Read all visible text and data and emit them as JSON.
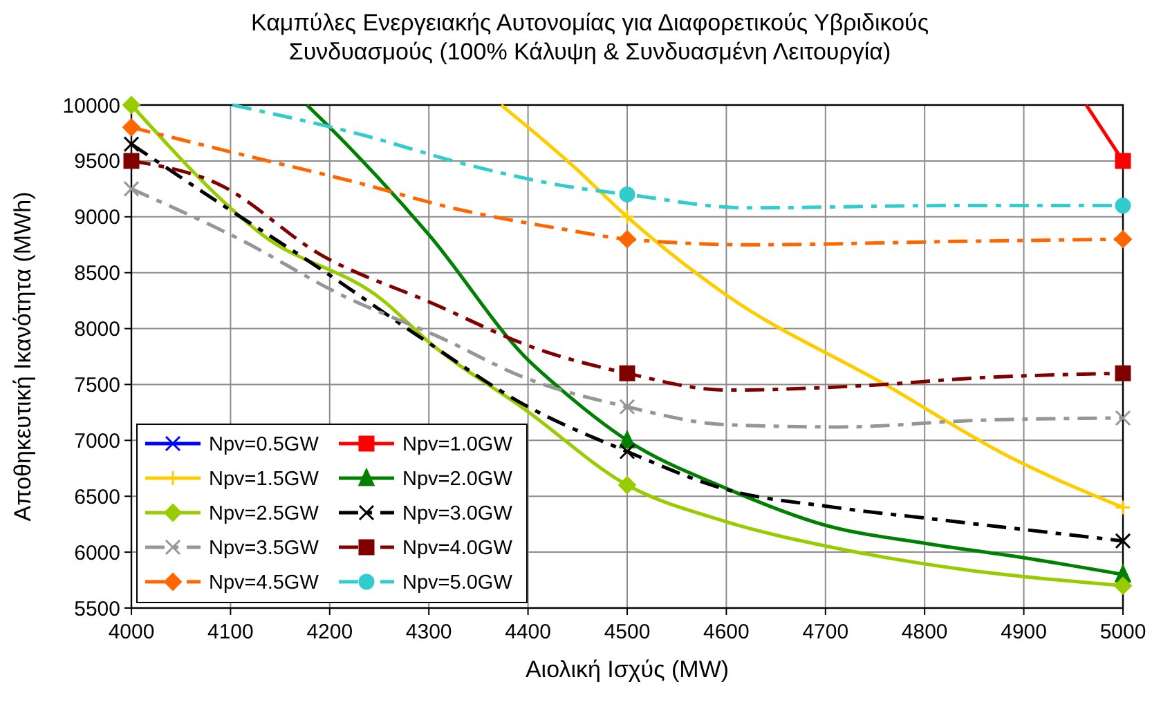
{
  "chart_data": {
    "type": "line",
    "title": "Καμπύλες Ενεργειακής Αυτονομίας για Διαφορετικούς Υβριδικούς Συνδυασμούς (100% Κάλυψη & Συνδυασμένη Λειτουργία)",
    "xlabel": "Αιολική Ισχύς (MW)",
    "ylabel": "Αποθηκευτική Ικανότητα (MWh)",
    "xlim": [
      4000,
      5000
    ],
    "xticks": [
      4000,
      4100,
      4200,
      4300,
      4400,
      4500,
      4600,
      4700,
      4800,
      4900,
      5000
    ],
    "ylim": [
      5500,
      10000
    ],
    "yticks": [
      5500,
      6000,
      6500,
      7000,
      7500,
      8000,
      8500,
      9000,
      9500,
      10000
    ],
    "grid": true,
    "legend": "bottom left",
    "series": [
      {
        "type": "scatter",
        "name": "Npv=0.5GW",
        "color": "#0000ff",
        "marker": "star",
        "line_style": "solid"
      },
      {
        "type": "scatter",
        "name": "Npv=1.0GW",
        "color": "#ff0000",
        "marker": "square",
        "line_style": "solid",
        "x": [
          5000
        ],
        "values": [
          9500
        ]
      },
      {
        "type": "scatter",
        "name": "Npv=1.5GW",
        "color": "#ffcc00",
        "marker": "plus",
        "line_style": "solid",
        "x": [
          4500,
          5000
        ],
        "values": [
          9000,
          6400
        ]
      },
      {
        "type": "scatter",
        "name": "Npv=2.0GW",
        "color": "#008000",
        "marker": "triangle",
        "line_style": "solid",
        "x": [
          4500,
          5000
        ],
        "values": [
          7000,
          5800
        ]
      },
      {
        "type": "scatter",
        "name": "Npv=2.5GW",
        "color": "#99cc00",
        "marker": "diamond",
        "line_style": "solid",
        "x": [
          4000,
          4500,
          5000
        ],
        "values": [
          10000,
          6600,
          5700
        ]
      },
      {
        "type": "scatter",
        "name": "Npv=3.0GW",
        "color": "#000000",
        "marker": "cross",
        "line_style": "dashed",
        "x": [
          4000,
          4500,
          5000
        ],
        "values": [
          9650,
          6900,
          6100
        ]
      },
      {
        "type": "scatter",
        "name": "Npv=3.5GW",
        "color": "#969696",
        "marker": "cross",
        "line_style": "dashed",
        "x": [
          4000,
          4500,
          5000
        ],
        "values": [
          9250,
          7300,
          7200
        ]
      },
      {
        "type": "scatter",
        "name": "Npv=4.0GW",
        "color": "#800000",
        "marker": "square",
        "line_style": "dashed",
        "x": [
          4000,
          4500,
          5000
        ],
        "values": [
          9500,
          7600,
          7600
        ]
      },
      {
        "type": "scatter",
        "name": "Npv=4.5GW",
        "color": "#ff6600",
        "marker": "diamond",
        "line_style": "dashed",
        "x": [
          4000,
          4500,
          5000
        ],
        "values": [
          9800,
          8800,
          8800
        ]
      },
      {
        "type": "scatter",
        "name": "Npv=5.0GW",
        "color": "#33cccc",
        "marker": "circle",
        "line_style": "dashed",
        "x": [
          4500,
          5000
        ],
        "values": [
          9200,
          9100
        ]
      },
      {
        "type": "line",
        "color": "#ff0000",
        "line_style": "solid",
        "x": [
          4963,
          5000
        ],
        "values": [
          10000,
          9500
        ]
      },
      {
        "type": "line",
        "color": "#ffcc00",
        "line_style": "solid",
        "x": [
          4373,
          4446,
          4500,
          4600,
          4760,
          4886,
          5000
        ],
        "values": [
          10000,
          9450,
          9000,
          8300,
          7500,
          6850,
          6400
        ]
      },
      {
        "type": "line",
        "color": "#008000",
        "line_style": "solid",
        "x": [
          4177,
          4200,
          4300,
          4400,
          4430,
          4500,
          4600,
          4700,
          4800,
          4900,
          5000
        ],
        "values": [
          10000,
          9800,
          8840,
          7720,
          7480,
          7000,
          6570,
          6240,
          6080,
          5950,
          5800
        ]
      },
      {
        "type": "line",
        "color": "#99cc00",
        "line_style": "solid",
        "x": [
          4000,
          4132,
          4254,
          4300,
          4398,
          4500,
          4597,
          4714,
          4843,
          5000
        ],
        "values": [
          10000,
          8840,
          8250,
          7880,
          7270,
          6600,
          6280,
          6030,
          5840,
          5700
        ]
      },
      {
        "type": "line",
        "color": "#000000",
        "line_style": "dashed",
        "x": [
          4000,
          4091,
          4188,
          4290,
          4398,
          4500,
          4600,
          4710,
          4815,
          5000
        ],
        "values": [
          9650,
          9110,
          8550,
          7930,
          7310,
          6900,
          6560,
          6400,
          6290,
          6100
        ]
      },
      {
        "type": "line",
        "color": "#969696",
        "line_style": "dashed",
        "x": [
          4000,
          4109,
          4212,
          4314,
          4394,
          4500,
          4600,
          4715,
          4855,
          5000
        ],
        "values": [
          9250,
          8800,
          8300,
          7910,
          7570,
          7300,
          7140,
          7120,
          7180,
          7200
        ]
      },
      {
        "type": "line",
        "color": "#800000",
        "line_style": "dashed",
        "x": [
          4000,
          4086,
          4193,
          4300,
          4412,
          4500,
          4600,
          4740,
          4856,
          5000
        ],
        "values": [
          9500,
          9300,
          8650,
          8240,
          7810,
          7600,
          7450,
          7490,
          7560,
          7600
        ]
      },
      {
        "type": "line",
        "color": "#ff6600",
        "line_style": "dashed",
        "x": [
          4000,
          4119,
          4226,
          4328,
          4435,
          4500,
          4625,
          4834,
          5000
        ],
        "values": [
          9800,
          9540,
          9310,
          9070,
          8890,
          8800,
          8750,
          8780,
          8800
        ]
      },
      {
        "type": "line",
        "color": "#33cccc",
        "line_style": "dashed",
        "x": [
          4102,
          4234,
          4337,
          4441,
          4500,
          4621,
          4821,
          5000
        ],
        "values": [
          10000,
          9730,
          9470,
          9270,
          9200,
          9080,
          9100,
          9100
        ]
      }
    ]
  }
}
